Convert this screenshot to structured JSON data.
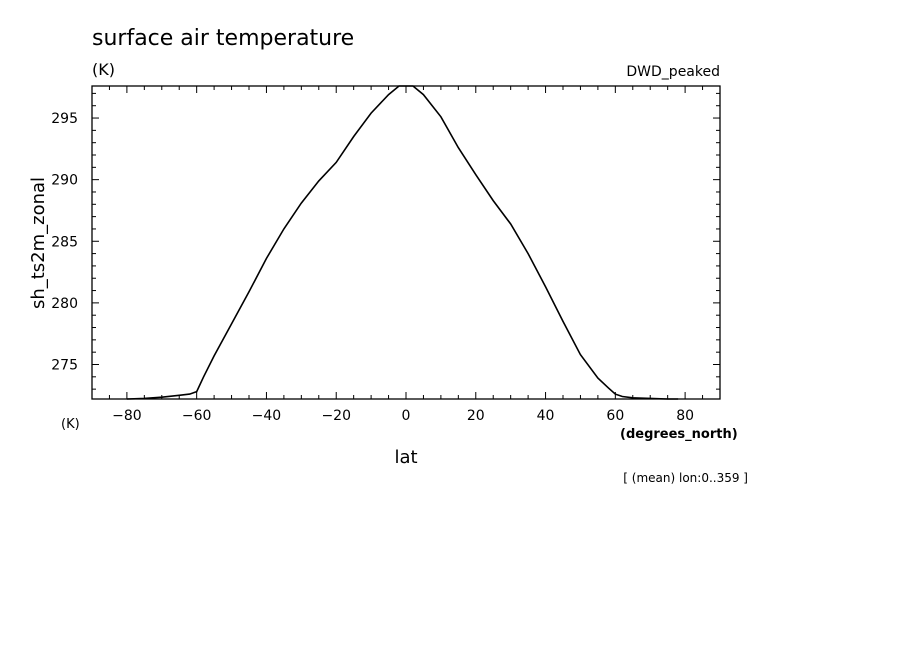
{
  "chart_data": {
    "type": "line",
    "title": "surface air temperature",
    "units_label": "(K)",
    "dataset_label": "DWD_peaked",
    "ylabel": "sh_ts2m_zonal",
    "ylabel_units": "(K)",
    "xlabel": "lat",
    "xlabel_units": "(degrees_north)",
    "footnote": "[ (mean) lon:0..359 ]",
    "xlim": [
      -90,
      90
    ],
    "ylim": [
      272.2,
      297.6
    ],
    "xticks": [
      -80,
      -60,
      -40,
      -20,
      0,
      20,
      40,
      60,
      80
    ],
    "xtick_labels": [
      "−80",
      "−60",
      "−40",
      "−20",
      "0",
      "20",
      "40",
      "60",
      "80"
    ],
    "yticks": [
      275,
      280,
      285,
      290,
      295
    ],
    "ytick_labels": [
      "275",
      "280",
      "285",
      "290",
      "295"
    ],
    "grid": false,
    "series": [
      {
        "color": "#000000",
        "x": [
          -80,
          -75,
          -70,
          -65,
          -62,
          -60,
          -58,
          -55,
          -50,
          -45,
          -40,
          -35,
          -30,
          -25,
          -20,
          -15,
          -10,
          -5,
          -2,
          0,
          2,
          5,
          10,
          15,
          20,
          25,
          30,
          35,
          40,
          45,
          50,
          55,
          58,
          60,
          62,
          65,
          70,
          75,
          78
        ],
        "y": [
          272.2,
          272.25,
          272.35,
          272.5,
          272.6,
          272.8,
          274.0,
          275.7,
          278.3,
          280.9,
          283.6,
          286.0,
          288.1,
          289.9,
          291.4,
          293.5,
          295.4,
          296.9,
          297.6,
          297.6,
          297.6,
          296.9,
          295.1,
          292.6,
          290.4,
          288.3,
          286.4,
          284.0,
          281.3,
          278.5,
          275.8,
          273.9,
          273.1,
          272.6,
          272.4,
          272.3,
          272.25,
          272.2,
          272.2
        ]
      }
    ]
  }
}
